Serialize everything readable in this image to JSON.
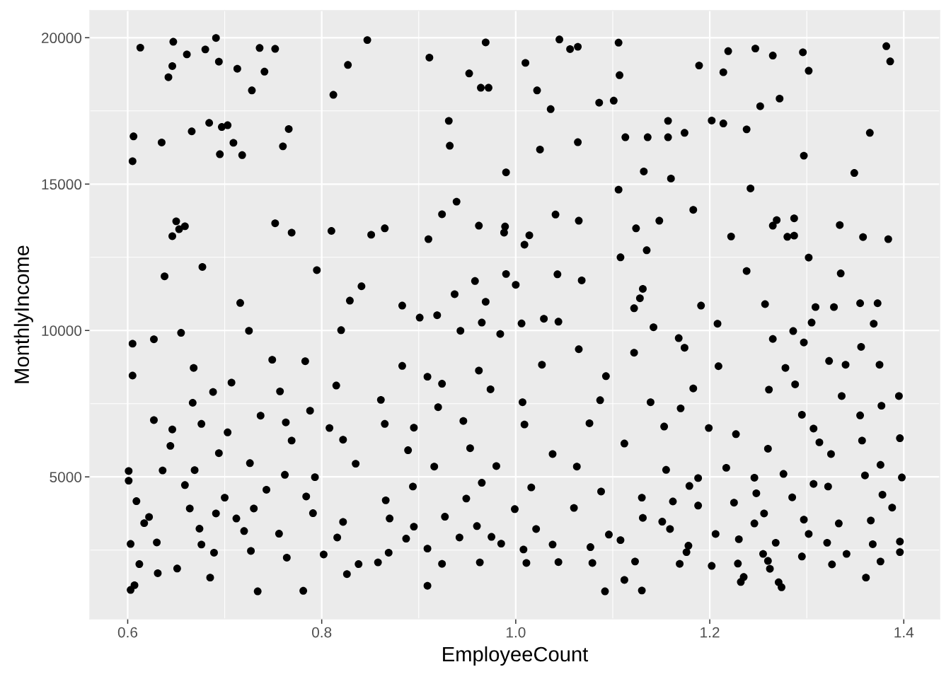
{
  "chart_data": {
    "type": "scatter",
    "xlabel": "EmployeeCount",
    "ylabel": "MonthlyIncome",
    "marker": "circle",
    "grid": true,
    "xlim": [
      0.561,
      1.437
    ],
    "ylim": [
      150,
      20925
    ],
    "xticks": [
      0.6,
      {
        "value": 0.7,
        "label": null
      },
      0.8,
      {
        "value": 0.9,
        "label": null
      },
      {
        "value": 1,
        "label": "1.0"
      },
      {
        "value": 1.1,
        "label": null
      },
      1.2,
      {
        "value": 1.3,
        "label": null
      },
      1.4
    ],
    "yticks": [
      {
        "value": 2500,
        "label": null
      },
      5000,
      {
        "value": 7500,
        "label": null
      },
      10000,
      {
        "value": 12500,
        "label": null
      },
      15000,
      {
        "value": 17500,
        "label": null
      },
      20000
    ],
    "series": [
      {
        "color": "#000000",
        "x": [
          0.613,
          0.647,
          0.661,
          0.68,
          0.691,
          0.694,
          0.646,
          0.642,
          0.713,
          0.736,
          0.752,
          0.741,
          0.728,
          0.847,
          0.827,
          0.812,
          0.606,
          0.605,
          0.635,
          0.666,
          0.684,
          0.697,
          0.703,
          0.709,
          0.695,
          0.718,
          0.766,
          0.76,
          0.65,
          0.659,
          0.653,
          0.646,
          0.752,
          0.769,
          0.81,
          0.851,
          0.638,
          0.677,
          0.795,
          0.841,
          0.829,
          0.716,
          0.969,
          0.911,
          0.952,
          0.964,
          0.972,
          1.045,
          1.056,
          1.064,
          1.01,
          1.022,
          1.036,
          1.086,
          1.101,
          1.106,
          1.107,
          0.931,
          0.932,
          0.99,
          1.025,
          1.064,
          1.113,
          1.136,
          1.132,
          1.106,
          0.939,
          0.924,
          0.91,
          0.962,
          0.989,
          0.988,
          1.014,
          1.009,
          1.041,
          1.065,
          1.124,
          1.148,
          1.135,
          1.108,
          0.865,
          0.883,
          0.937,
          0.958,
          0.969,
          0.99,
          1.0,
          1.043,
          1.068,
          1.131,
          1.128,
          1.122,
          1.189,
          1.219,
          1.214,
          1.247,
          1.265,
          1.296,
          1.302,
          1.252,
          1.272,
          1.382,
          1.386,
          1.157,
          1.157,
          1.174,
          1.202,
          1.214,
          1.238,
          1.297,
          1.365,
          1.349,
          1.16,
          1.242,
          1.183,
          1.222,
          1.269,
          1.265,
          1.287,
          1.28,
          1.287,
          1.334,
          1.358,
          1.384,
          1.302,
          1.238,
          1.335,
          1.191,
          1.257,
          1.309,
          1.328,
          1.355,
          1.373,
          0.605,
          0.627,
          0.655,
          0.605,
          0.668,
          0.707,
          0.688,
          0.667,
          0.757,
          0.749,
          0.783,
          0.725,
          0.82,
          0.815,
          0.788,
          0.627,
          0.646,
          0.676,
          0.644,
          0.694,
          0.703,
          0.737,
          0.763,
          0.769,
          0.808,
          0.822,
          0.601,
          0.601,
          0.636,
          0.669,
          0.726,
          0.762,
          0.793,
          0.835,
          0.609,
          0.659,
          0.7,
          0.743,
          0.784,
          0.622,
          0.664,
          0.691,
          0.73,
          0.791,
          0.617,
          0.674,
          0.712,
          0.822,
          0.603,
          0.63,
          0.676,
          0.72,
          0.756,
          0.816,
          0.612,
          0.651,
          0.689,
          0.727,
          0.764,
          0.802,
          0.838,
          0.631,
          0.685,
          0.826,
          0.603,
          0.607,
          0.734,
          0.781,
          0.901,
          0.919,
          0.965,
          0.943,
          0.984,
          1.006,
          1.029,
          1.044,
          1.142,
          0.883,
          0.909,
          0.924,
          0.962,
          0.974,
          1.027,
          1.065,
          1.093,
          1.122,
          1.139,
          1.087,
          1.007,
          0.861,
          0.92,
          0.865,
          0.895,
          0.946,
          1.009,
          1.076,
          1.153,
          0.889,
          0.953,
          1.038,
          1.112,
          0.916,
          0.98,
          1.063,
          1.155,
          0.894,
          0.965,
          1.016,
          1.088,
          1.13,
          0.866,
          0.949,
          0.999,
          1.06,
          0.87,
          0.927,
          1.131,
          0.895,
          0.96,
          1.021,
          1.151,
          0.887,
          0.942,
          0.975,
          1.096,
          0.909,
          0.985,
          1.038,
          1.108,
          0.869,
          1.008,
          1.077,
          0.858,
          0.924,
          0.963,
          1.011,
          1.044,
          1.079,
          1.123,
          0.909,
          1.092,
          1.112,
          1.13,
          1.208,
          1.305,
          1.369,
          1.168,
          1.174,
          1.265,
          1.286,
          1.297,
          1.356,
          1.209,
          1.278,
          1.288,
          1.261,
          1.323,
          1.34,
          1.375,
          1.336,
          1.395,
          1.183,
          1.377,
          1.17,
          1.295,
          1.355,
          1.307,
          1.313,
          1.357,
          1.396,
          1.199,
          1.227,
          1.26,
          1.325,
          1.376,
          1.217,
          1.276,
          1.36,
          1.398,
          1.188,
          1.246,
          1.307,
          1.179,
          1.248,
          1.322,
          1.378,
          1.225,
          1.285,
          1.388,
          1.162,
          1.188,
          1.256,
          1.246,
          1.297,
          1.333,
          1.366,
          1.159,
          1.206,
          1.23,
          1.302,
          1.178,
          1.268,
          1.321,
          1.368,
          1.396,
          1.176,
          1.255,
          1.295,
          1.341,
          1.396,
          1.169,
          1.202,
          1.229,
          1.26,
          1.326,
          1.376,
          1.262,
          1.235,
          1.232,
          1.271,
          1.274,
          1.361
        ],
        "values": [
          19660,
          19860,
          19430,
          19600,
          19990,
          19180,
          19030,
          18650,
          18940,
          19650,
          19620,
          18840,
          18200,
          19920,
          19070,
          18050,
          16630,
          15780,
          16420,
          16800,
          17090,
          16950,
          17010,
          16410,
          16020,
          15990,
          16880,
          16290,
          13730,
          13560,
          13460,
          13220,
          13660,
          13340,
          13400,
          13270,
          11850,
          12170,
          12060,
          11510,
          11020,
          10940,
          19840,
          19320,
          18780,
          18290,
          18290,
          19940,
          19610,
          19690,
          19140,
          18200,
          17560,
          17780,
          17850,
          19830,
          18720,
          17160,
          16310,
          15400,
          16180,
          16430,
          16600,
          16600,
          15430,
          14810,
          14400,
          13970,
          13120,
          13580,
          13550,
          13340,
          13250,
          12930,
          13960,
          13750,
          13490,
          13750,
          12740,
          12500,
          13490,
          10850,
          11240,
          11690,
          10980,
          11930,
          11560,
          11920,
          11710,
          11420,
          11100,
          10760,
          19050,
          19540,
          18820,
          19630,
          19390,
          19500,
          18870,
          17660,
          17920,
          19710,
          19190,
          17160,
          16600,
          16750,
          17170,
          17070,
          16870,
          15970,
          16750,
          15380,
          15190,
          14850,
          14120,
          13210,
          13770,
          13580,
          13830,
          13200,
          13240,
          13600,
          13190,
          13120,
          12490,
          12030,
          11950,
          10850,
          10900,
          10800,
          10800,
          10930,
          10930,
          9550,
          9700,
          9920,
          8460,
          8720,
          8220,
          7900,
          7530,
          7920,
          9000,
          8950,
          9990,
          10010,
          8120,
          7260,
          6940,
          6620,
          6810,
          6060,
          5810,
          6520,
          7090,
          6860,
          6240,
          6670,
          6270,
          5200,
          4870,
          5220,
          5230,
          5470,
          5070,
          4990,
          5450,
          4170,
          4720,
          4290,
          4560,
          4330,
          3630,
          3920,
          3750,
          3920,
          3760,
          3420,
          3230,
          3580,
          3460,
          2710,
          2760,
          2690,
          3150,
          3060,
          2930,
          2020,
          1870,
          2410,
          2470,
          2240,
          2350,
          2020,
          1710,
          1560,
          1680,
          1140,
          1300,
          1090,
          1110,
          10440,
          10520,
          10270,
          9990,
          9880,
          10240,
          10400,
          10300,
          10110,
          8790,
          8420,
          8180,
          8630,
          7990,
          8830,
          9360,
          8440,
          9240,
          7550,
          7620,
          7550,
          7630,
          7380,
          6810,
          6680,
          6910,
          6790,
          6830,
          6720,
          5910,
          5980,
          5780,
          6140,
          5350,
          5370,
          5350,
          5240,
          4670,
          4800,
          4640,
          4500,
          4290,
          4200,
          4260,
          3900,
          3940,
          3580,
          3640,
          3600,
          3300,
          3320,
          3220,
          3470,
          2890,
          2930,
          2950,
          3030,
          2550,
          2720,
          2690,
          2840,
          2410,
          2520,
          2600,
          2080,
          2030,
          2080,
          2060,
          2090,
          2060,
          2110,
          1280,
          1090,
          1480,
          1120,
          10230,
          10270,
          10230,
          9740,
          9410,
          9710,
          9980,
          9590,
          9440,
          8780,
          8720,
          8160,
          7980,
          8960,
          8830,
          8830,
          7760,
          7760,
          8020,
          7430,
          7340,
          7120,
          7100,
          6650,
          6180,
          6240,
          6320,
          6670,
          6460,
          5960,
          5780,
          5410,
          5310,
          5100,
          5050,
          4980,
          4960,
          4970,
          4760,
          4690,
          4440,
          4670,
          4390,
          4120,
          4300,
          3950,
          4160,
          4020,
          3750,
          3410,
          3540,
          3410,
          3510,
          3220,
          3050,
          2870,
          3050,
          2650,
          2750,
          2750,
          2700,
          2790,
          2430,
          2370,
          2280,
          2370,
          2430,
          2030,
          1960,
          2040,
          2130,
          2010,
          2110,
          1860,
          1580,
          1410,
          1400,
          1230,
          1560
        ]
      }
    ]
  }
}
